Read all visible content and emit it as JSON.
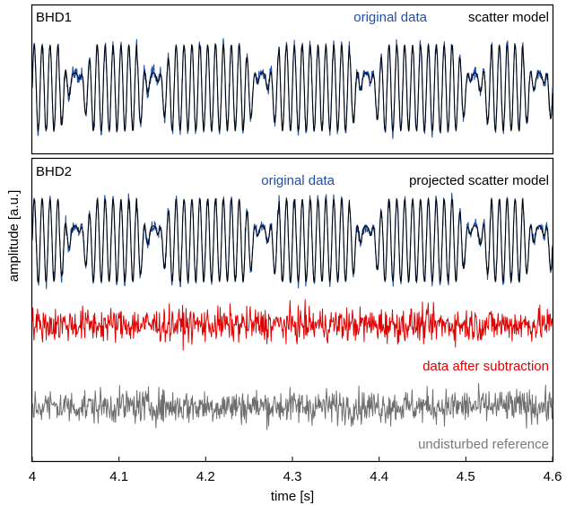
{
  "chart_data": [
    {
      "type": "line",
      "panel_label": "BHD1",
      "ylabel": "",
      "series": [
        {
          "name": "original data",
          "color": "#1f4fa8",
          "kind": "signal-with-scatter-arches",
          "amplitude": 1.0,
          "noise": 0.15
        },
        {
          "name": "scatter model",
          "color": "#000000",
          "kind": "signal-with-scatter-arches",
          "amplitude": 1.0,
          "noise": 0.0
        }
      ],
      "legend_placement": "top-right",
      "grid": false
    },
    {
      "type": "line",
      "panel_label": "BHD2",
      "ylabel": "amplitude [a.u.]",
      "xlabel": "time [s]",
      "xlim": [
        4.0,
        4.6
      ],
      "xticks": [
        "4",
        "4.1",
        "4.2",
        "4.3",
        "4.4",
        "4.5",
        "4.6"
      ],
      "series": [
        {
          "name": "original data",
          "color": "#1f4fa8",
          "kind": "signal-with-scatter-arches",
          "amplitude": 1.0,
          "noise": 0.15
        },
        {
          "name": "projected scatter model",
          "color": "#000000",
          "kind": "signal-with-scatter-arches",
          "amplitude": 1.0,
          "noise": 0.0
        },
        {
          "name": "data after subtraction",
          "color": "#e00000",
          "kind": "noise",
          "amplitude": 0.3
        },
        {
          "name": "undisturbed reference",
          "color": "#6e6e6e",
          "kind": "noise",
          "amplitude": 0.3
        }
      ],
      "legend_placement": "top-right",
      "grid": false
    }
  ],
  "colors": {
    "blue": "#1f4fa8",
    "black": "#000000",
    "red": "#e00000",
    "gray": "#7a7a7a"
  }
}
